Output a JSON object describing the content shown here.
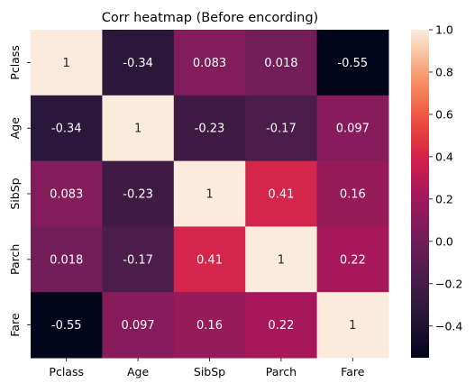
{
  "chart_data": {
    "type": "heatmap",
    "title": "Corr heatmap (Before encording)",
    "xlabel": "",
    "ylabel": "",
    "x_categories": [
      "Pclass",
      "Age",
      "SibSp",
      "Parch",
      "Fare"
    ],
    "y_categories": [
      "Pclass",
      "Age",
      "SibSp",
      "Parch",
      "Fare"
    ],
    "values": [
      [
        1,
        -0.34,
        0.083,
        0.018,
        -0.55
      ],
      [
        -0.34,
        1,
        -0.23,
        -0.17,
        0.097
      ],
      [
        0.083,
        -0.23,
        1,
        0.41,
        0.16
      ],
      [
        0.018,
        -0.17,
        0.41,
        1,
        0.22
      ],
      [
        -0.55,
        0.097,
        0.16,
        0.22,
        1
      ]
    ],
    "cell_labels": [
      [
        "1",
        "-0.34",
        "0.083",
        "0.018",
        "-0.55"
      ],
      [
        "-0.34",
        "1",
        "-0.23",
        "-0.17",
        "0.097"
      ],
      [
        "0.083",
        "-0.23",
        "1",
        "0.41",
        "0.16"
      ],
      [
        "0.018",
        "-0.17",
        "0.41",
        "1",
        "0.22"
      ],
      [
        "-0.55",
        "0.097",
        "0.16",
        "0.22",
        "1"
      ]
    ],
    "colorbar": {
      "min": -0.55,
      "max": 1.0,
      "ticks": [
        1.0,
        0.8,
        0.6,
        0.4,
        0.2,
        0.0,
        -0.2,
        -0.4
      ],
      "tick_labels": [
        "1.0",
        "0.8",
        "0.6",
        "0.4",
        "0.2",
        "0.0",
        "−0.2",
        "−0.4"
      ]
    },
    "colormap": "rocket",
    "grid": false
  }
}
